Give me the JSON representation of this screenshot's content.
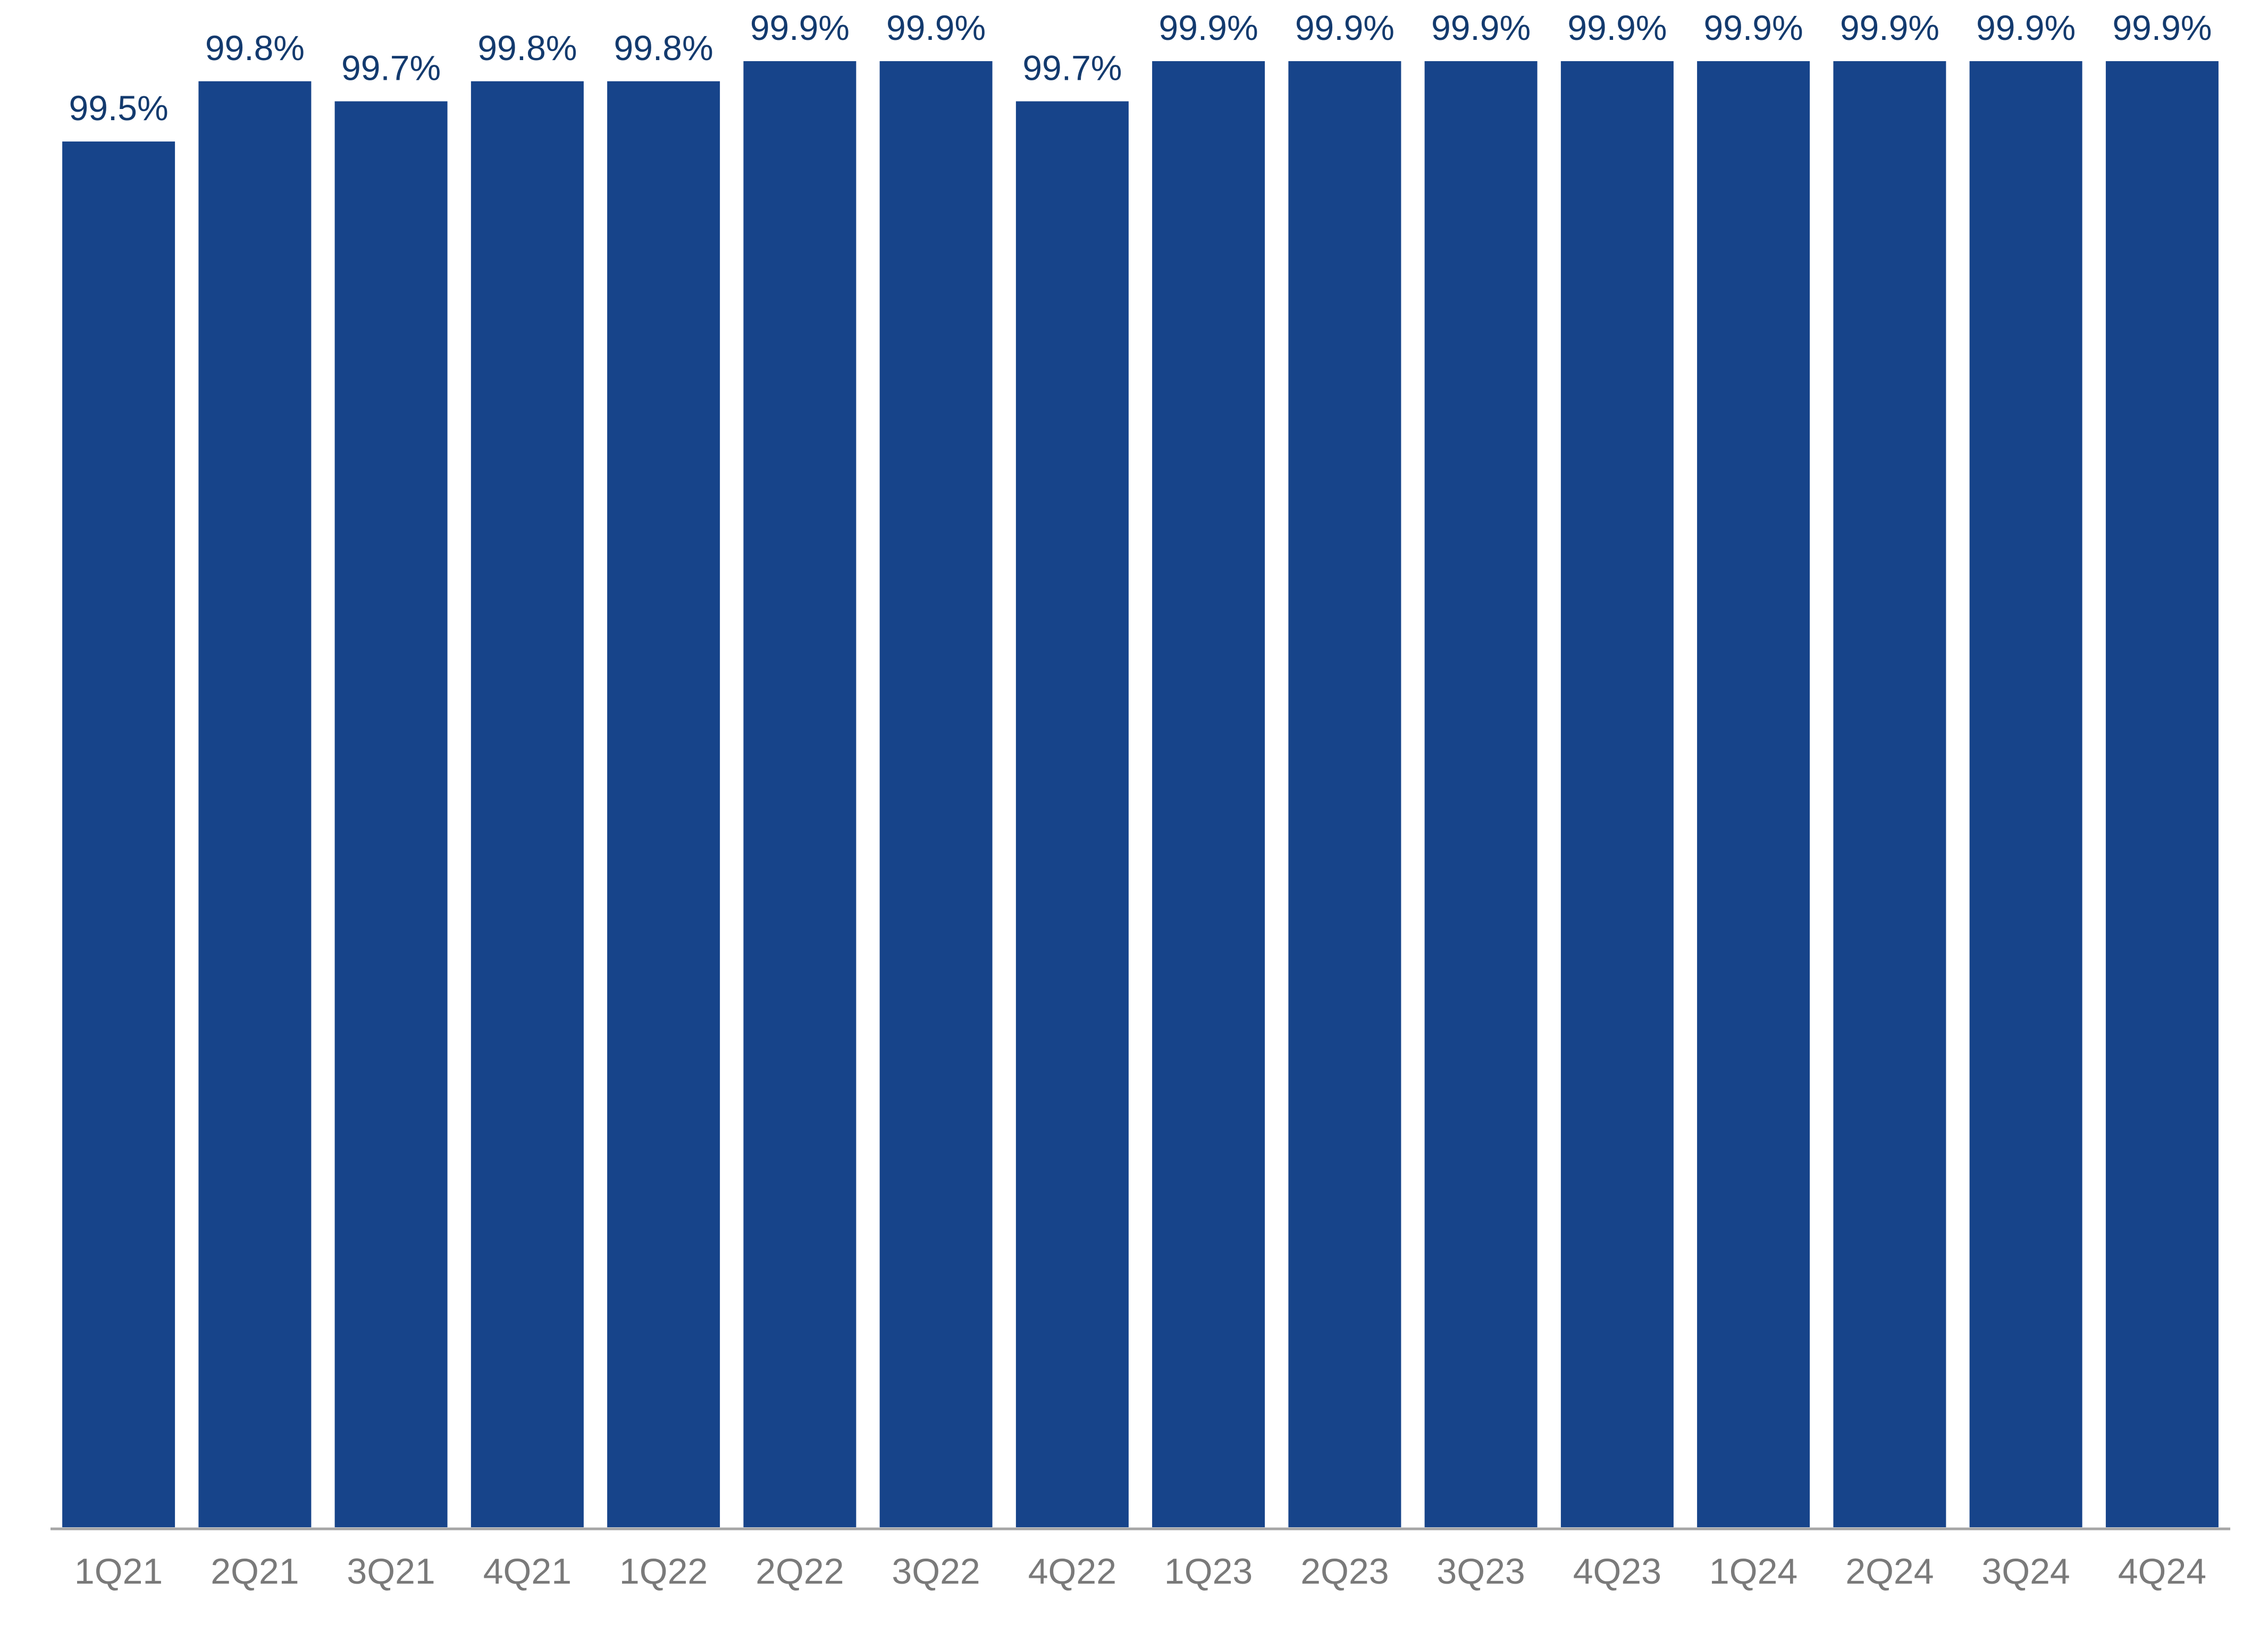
{
  "chart_data": {
    "type": "bar",
    "categories": [
      "1Q21",
      "2Q21",
      "3Q21",
      "4Q21",
      "1Q22",
      "2Q22",
      "3Q22",
      "4Q22",
      "1Q23",
      "2Q23",
      "3Q23",
      "4Q23",
      "1Q24",
      "2Q24",
      "3Q24",
      "4Q24"
    ],
    "values": [
      99.5,
      99.8,
      99.7,
      99.8,
      99.8,
      99.9,
      99.9,
      99.7,
      99.9,
      99.9,
      99.9,
      99.9,
      99.9,
      99.9,
      99.9,
      99.9
    ],
    "data_labels": [
      "99.5%",
      "99.8%",
      "99.7%",
      "99.8%",
      "99.8%",
      "99.9%",
      "99.9%",
      "99.7%",
      "99.9%",
      "99.9%",
      "99.9%",
      "99.9%",
      "99.9%",
      "99.9%",
      "99.9%",
      "99.9%"
    ],
    "ylim": [
      92.6,
      99.9
    ],
    "grid": false,
    "legend": "none",
    "colors": {
      "bar": "#17448a",
      "data_label": "#133a6e",
      "tick_label": "#7a7a7a",
      "axis_line": "#a6a6a6",
      "background": "#ffffff"
    }
  }
}
